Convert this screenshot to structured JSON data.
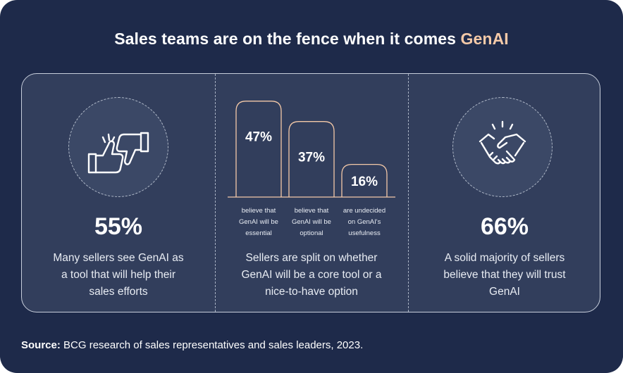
{
  "title": {
    "main": "Sales teams are on the fence when it comes",
    "accent": "GenAI"
  },
  "stats": {
    "left": {
      "value": "55%",
      "description": [
        "Many sellers see GenAI as",
        "a tool that will help their",
        "sales efforts"
      ],
      "icon": "thumbs-up-down-icon"
    },
    "middle": {
      "description": [
        "Sellers are split on whether",
        "GenAI will be a core tool  or a",
        "nice-to-have option"
      ]
    },
    "right": {
      "value": "66%",
      "description": [
        "A solid majority of sellers",
        "believe that they will trust",
        "GenAI"
      ],
      "icon": "handshake-icon"
    }
  },
  "chart_data": {
    "type": "bar",
    "categories": [
      "believe that GenAI will  be essential",
      "believe that GenAI will  be optional",
      "are undecided on GenAI's usefulness"
    ],
    "values": [
      47,
      37,
      16
    ],
    "data_labels": [
      "47%",
      "37%",
      "16%"
    ],
    "category_lines": [
      [
        "believe that",
        "GenAI will  be",
        "essential"
      ],
      [
        "believe that",
        "GenAI will  be",
        "optional"
      ],
      [
        "are undecided",
        "on GenAI's",
        "usefulness"
      ]
    ],
    "ylim": [
      0,
      50
    ],
    "grid": false,
    "legend": "none"
  },
  "source": {
    "label": "Source:",
    "text": " BCG research  of sales  representatives and sales leaders, 2023."
  },
  "colors": {
    "background": "#1e2a4a",
    "panel": "#323e5c",
    "accent": "#f4c9a8",
    "bar_border": "#f4c9a8"
  }
}
